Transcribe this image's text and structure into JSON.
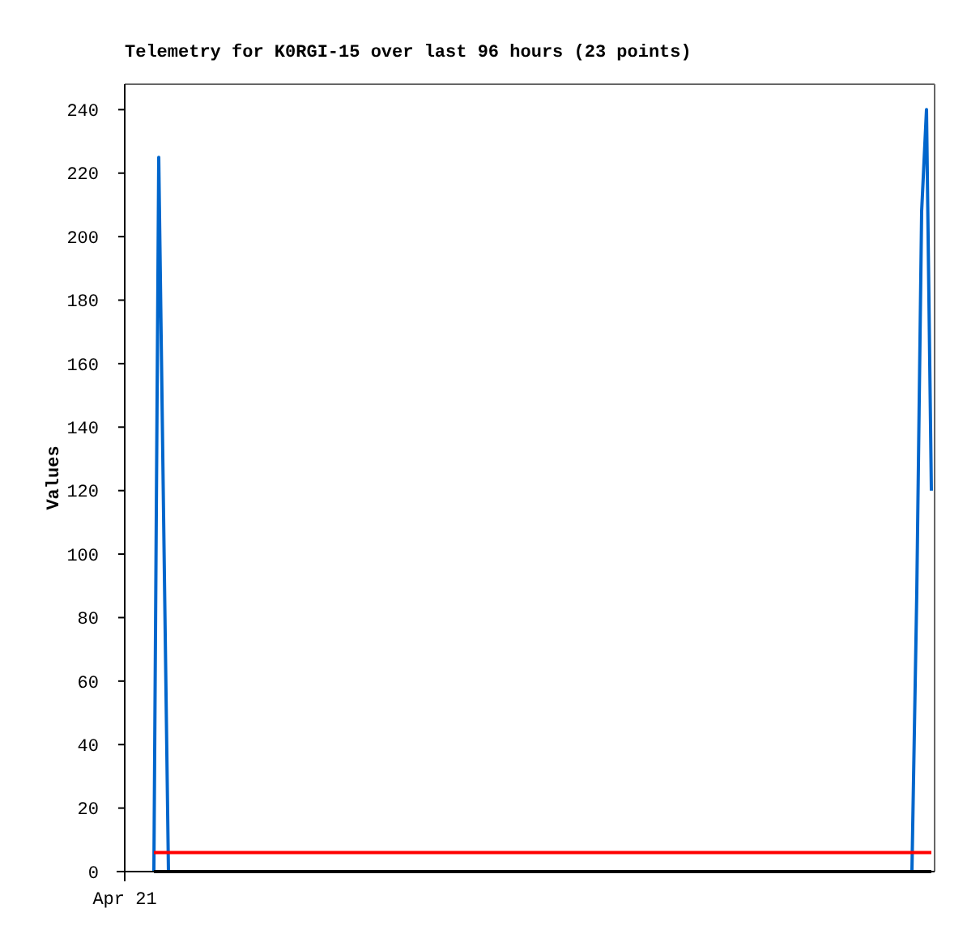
{
  "chart_data": {
    "type": "line",
    "title": "Telemetry for K0RGI-15 over last 96 hours (23 points)",
    "ylabel": "Values",
    "annotations": [
      "Apr 21"
    ],
    "ylim": [
      0,
      248
    ],
    "yticks": [
      0,
      20,
      40,
      60,
      80,
      100,
      120,
      140,
      160,
      180,
      200,
      220,
      240
    ],
    "categories": [
      null,
      null,
      null,
      null,
      null,
      null,
      null,
      null,
      null,
      null,
      null,
      null,
      null,
      null,
      null,
      null,
      null,
      null,
      null,
      null,
      null,
      null,
      null,
      null,
      null,
      null,
      null,
      null,
      null,
      null,
      null,
      null,
      null,
      null,
      null,
      null,
      null,
      null,
      null,
      null,
      null,
      null,
      null,
      null,
      null,
      null,
      null,
      null,
      null,
      null,
      null,
      null,
      null,
      null,
      null,
      null,
      null,
      null,
      null,
      null,
      null,
      null,
      null,
      null,
      null,
      null,
      null,
      null,
      null,
      null,
      null,
      null,
      null,
      null,
      null,
      null,
      null,
      null,
      null,
      null,
      null,
      null,
      null,
      null,
      null,
      null,
      null,
      null,
      null,
      null,
      null,
      null,
      null,
      null,
      null,
      null,
      null,
      null,
      null,
      null,
      null,
      null,
      null,
      null,
      null,
      null,
      null,
      null,
      null,
      null,
      null,
      null,
      null,
      null,
      null,
      null,
      null,
      null,
      null,
      null,
      null,
      null,
      null,
      null,
      null,
      null,
      null,
      null,
      null,
      null,
      null,
      null,
      null,
      null,
      null,
      null,
      null,
      null,
      null,
      null,
      null,
      null,
      null,
      null,
      null,
      null,
      null,
      null,
      null,
      null,
      null,
      null,
      null,
      null,
      null,
      null,
      null,
      null,
      null,
      null,
      null
    ],
    "series": [
      {
        "color": "#0066cc",
        "values": [
          0,
          225,
          112,
          0,
          null,
          null,
          null,
          null,
          null,
          null,
          null,
          null,
          null,
          null,
          null,
          null,
          null,
          null,
          null,
          null,
          null,
          null,
          null,
          null,
          null,
          null,
          null,
          null,
          null,
          null,
          null,
          null,
          null,
          null,
          null,
          null,
          null,
          null,
          null,
          null,
          null,
          null,
          null,
          null,
          null,
          null,
          null,
          null,
          null,
          null,
          null,
          null,
          null,
          null,
          null,
          null,
          null,
          null,
          null,
          null,
          null,
          null,
          null,
          null,
          null,
          null,
          null,
          null,
          null,
          null,
          null,
          null,
          null,
          null,
          null,
          null,
          null,
          null,
          null,
          null,
          null,
          null,
          null,
          null,
          null,
          null,
          null,
          null,
          null,
          null,
          null,
          null,
          null,
          null,
          null,
          null,
          null,
          null,
          null,
          null,
          null,
          null,
          null,
          null,
          null,
          null,
          null,
          null,
          null,
          null,
          null,
          null,
          null,
          null,
          null,
          null,
          null,
          null,
          null,
          null,
          null,
          null,
          null,
          null,
          null,
          null,
          null,
          null,
          null,
          null,
          null,
          null,
          null,
          null,
          null,
          null,
          null,
          null,
          null,
          null,
          null,
          null,
          null,
          null,
          null,
          null,
          null,
          null,
          null,
          null,
          null,
          null,
          null,
          null,
          null,
          null,
          0,
          88,
          208,
          240,
          120
        ]
      },
      {
        "color": "#ff0000",
        "values": [
          6,
          6,
          6,
          6,
          6,
          6,
          6,
          6,
          6,
          6,
          6,
          6,
          6,
          6,
          6,
          6,
          6,
          6,
          6,
          6,
          6,
          6,
          6,
          6,
          6,
          6,
          6,
          6,
          6,
          6,
          6,
          6,
          6,
          6,
          6,
          6,
          6,
          6,
          6,
          6,
          6,
          6,
          6,
          6,
          6,
          6,
          6,
          6,
          6,
          6,
          6,
          6,
          6,
          6,
          6,
          6,
          6,
          6,
          6,
          6,
          6,
          6,
          6,
          6,
          6,
          6,
          6,
          6,
          6,
          6,
          6,
          6,
          6,
          6,
          6,
          6,
          6,
          6,
          6,
          6,
          6,
          6,
          6,
          6,
          6,
          6,
          6,
          6,
          6,
          6,
          6,
          6,
          6,
          6,
          6,
          6,
          6,
          6,
          6,
          6,
          6,
          6,
          6,
          6,
          6,
          6,
          6,
          6,
          6,
          6,
          6,
          6,
          6,
          6,
          6,
          6,
          6,
          6,
          6,
          6,
          6,
          6,
          6,
          6,
          6,
          6,
          6,
          6,
          6,
          6,
          6,
          6,
          6,
          6,
          6,
          6,
          6,
          6,
          6,
          6,
          6,
          6,
          6,
          6,
          6,
          6,
          6,
          6,
          6,
          6,
          6,
          6,
          6,
          6,
          6,
          6,
          6,
          6,
          6,
          6,
          6
        ]
      },
      {
        "color": "#000000",
        "values": [
          0,
          0,
          0,
          0,
          0,
          0,
          0,
          0,
          0,
          0,
          0,
          0,
          0,
          0,
          0,
          0,
          0,
          0,
          0,
          0,
          0,
          0,
          0,
          0,
          0,
          0,
          0,
          0,
          0,
          0,
          0,
          0,
          0,
          0,
          0,
          0,
          0,
          0,
          0,
          0,
          0,
          0,
          0,
          0,
          0,
          0,
          0,
          0,
          0,
          0,
          0,
          0,
          0,
          0,
          0,
          0,
          0,
          0,
          0,
          0,
          0,
          0,
          0,
          0,
          0,
          0,
          0,
          0,
          0,
          0,
          0,
          0,
          0,
          0,
          0,
          0,
          0,
          0,
          0,
          0,
          0,
          0,
          0,
          0,
          0,
          0,
          0,
          0,
          0,
          0,
          0,
          0,
          0,
          0,
          0,
          0,
          0,
          0,
          0,
          0,
          0,
          0,
          0,
          0,
          0,
          0,
          0,
          0,
          0,
          0,
          0,
          0,
          0,
          0,
          0,
          0,
          0,
          0,
          0,
          0,
          0,
          0,
          0,
          0,
          0,
          0,
          0,
          0,
          0,
          0,
          0,
          0,
          0,
          0,
          0,
          0,
          0,
          0,
          0,
          0,
          0,
          0,
          0,
          0,
          0,
          0,
          0,
          0,
          0,
          0,
          0,
          0,
          0,
          0,
          0,
          0,
          0,
          0,
          0,
          0,
          0
        ]
      }
    ]
  }
}
